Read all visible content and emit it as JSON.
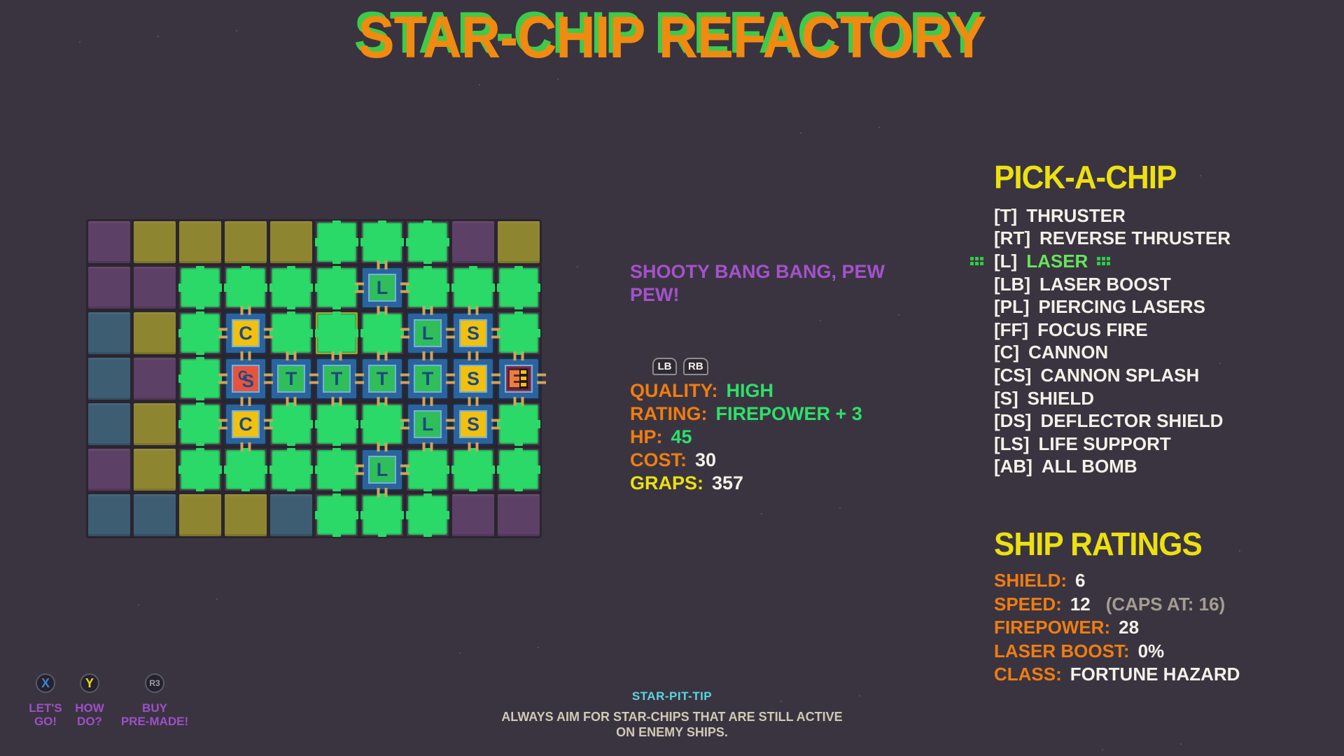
{
  "title": "STAR-CHIP REFACTORY",
  "board": {
    "legend": {
      "P": "purple-tile",
      "O": "olive-tile",
      "B": "blue-tile",
      "G": "empty-socket",
      "G*": "empty-socket-cursor",
      "T": "thruster-chip",
      "L": "laser-chip",
      "C": "cannon-chip",
      "CS": "cannon-splash-chip",
      "S": "shield-chip",
      "E": "engine-core-chip"
    },
    "rows": [
      [
        "P",
        "O",
        "O",
        "O",
        "O",
        "G",
        "G",
        "G",
        "P",
        "O"
      ],
      [
        "P",
        "P",
        "G",
        "G",
        "G",
        "G",
        "L",
        "G",
        "G",
        "G"
      ],
      [
        "B",
        "O",
        "G",
        "C",
        "G",
        "G*",
        "G",
        "L",
        "S",
        "G"
      ],
      [
        "B",
        "P",
        "G",
        "CS",
        "T",
        "T",
        "T",
        "T",
        "S",
        "E"
      ],
      [
        "B",
        "O",
        "G",
        "C",
        "G",
        "G",
        "G",
        "L",
        "S",
        "G"
      ],
      [
        "P",
        "O",
        "G",
        "G",
        "G",
        "G",
        "L",
        "G",
        "G",
        "G"
      ],
      [
        "B",
        "B",
        "O",
        "O",
        "B",
        "G",
        "G",
        "G",
        "P",
        "P"
      ]
    ],
    "chip_letters": {
      "T": "T",
      "L": "L",
      "C": "C",
      "S": "S"
    }
  },
  "chip_info": {
    "description": "SHOOTY BANG BANG, PEW\nPEW!",
    "lb_label": "LB",
    "rb_label": "RB",
    "stats": [
      {
        "label": "QUALITY:",
        "value": "HIGH",
        "label_style": "lbl-orange",
        "value_style": "val-green"
      },
      {
        "label": "RATING:",
        "value": "FIREPOWER + 3",
        "label_style": "lbl-orange",
        "value_style": "val-green"
      },
      {
        "label": "HP:",
        "value": "45",
        "label_style": "lbl-orange",
        "value_style": "val-green"
      },
      {
        "label": "COST:",
        "value": "30",
        "label_style": "lbl-orange",
        "value_style": "val-white"
      },
      {
        "label": "GRAPS:",
        "value": "357",
        "label_style": "lbl-yellow",
        "value_style": "val-white"
      }
    ]
  },
  "pick_a_chip": {
    "title": "PICK-A-CHIP",
    "items": [
      {
        "key": "[T]",
        "label": "THRUSTER",
        "selected": false
      },
      {
        "key": "[RT]",
        "label": "REVERSE THRUSTER",
        "selected": false
      },
      {
        "key": "[L]",
        "label": "LASER",
        "selected": true
      },
      {
        "key": "[LB]",
        "label": "LASER BOOST",
        "selected": false
      },
      {
        "key": "[PL]",
        "label": "PIERCING LASERS",
        "selected": false
      },
      {
        "key": "[FF]",
        "label": "FOCUS FIRE",
        "selected": false
      },
      {
        "key": "[C]",
        "label": "CANNON",
        "selected": false
      },
      {
        "key": "[CS]",
        "label": "CANNON SPLASH",
        "selected": false
      },
      {
        "key": "[S]",
        "label": "SHIELD",
        "selected": false
      },
      {
        "key": "[DS]",
        "label": "DEFLECTOR SHIELD",
        "selected": false
      },
      {
        "key": "[LS]",
        "label": "LIFE SUPPORT",
        "selected": false
      },
      {
        "key": "[AB]",
        "label": "ALL BOMB",
        "selected": false
      }
    ]
  },
  "ship_ratings": {
    "title": "SHIP RATINGS",
    "stats": [
      {
        "label": "SHIELD:",
        "value": "6",
        "extra": ""
      },
      {
        "label": "SPEED:",
        "value": "12",
        "extra": "(CAPS AT: 16)"
      },
      {
        "label": "FIREPOWER:",
        "value": "28",
        "extra": ""
      },
      {
        "label": "LASER BOOST:",
        "value": "0%",
        "extra": ""
      },
      {
        "label": "CLASS:",
        "value": "FORTUNE HAZARD",
        "extra": ""
      }
    ]
  },
  "controls": [
    {
      "button": "X",
      "label": "LET'S\nGO!",
      "button_color": "#3f85c8",
      "size": "normal"
    },
    {
      "button": "Y",
      "label": "HOW\nDO?",
      "button_color": "#e8e00a",
      "size": "normal"
    },
    {
      "button": "R3",
      "label": "BUY\nPRE-MADE!",
      "button_color": "#9aa0a4",
      "size": "small"
    }
  ],
  "tip": {
    "title": "STAR-PIT-TIP",
    "body": "ALWAYS AIM FOR STAR-CHIPS THAT ARE STILL ACTIVE\nON ENEMY SHIPS."
  },
  "colors": {
    "background": "#3a3440",
    "title_orange": "#f18a10",
    "title_green_shadow": "#3ecb49",
    "accent_purple": "#a452cc",
    "label_orange": "#ef7d11",
    "value_green": "#2ee06a",
    "accent_yellow": "#ece011",
    "text_white": "#f4f1e8",
    "muted_gray": "#a49d90",
    "tip_cyan": "#57d7e2",
    "cell_purple": "#5d4065",
    "cell_olive": "#8e8530",
    "cell_blue": "#3d5d72",
    "cell_green": "#2bd968",
    "chip_frame_blue": "#2d639c",
    "chip_yellow": "#f2c00e",
    "chip_red": "#e85340",
    "chip_green": "#2fbe5a",
    "pin_tan": "#c9a55f"
  }
}
